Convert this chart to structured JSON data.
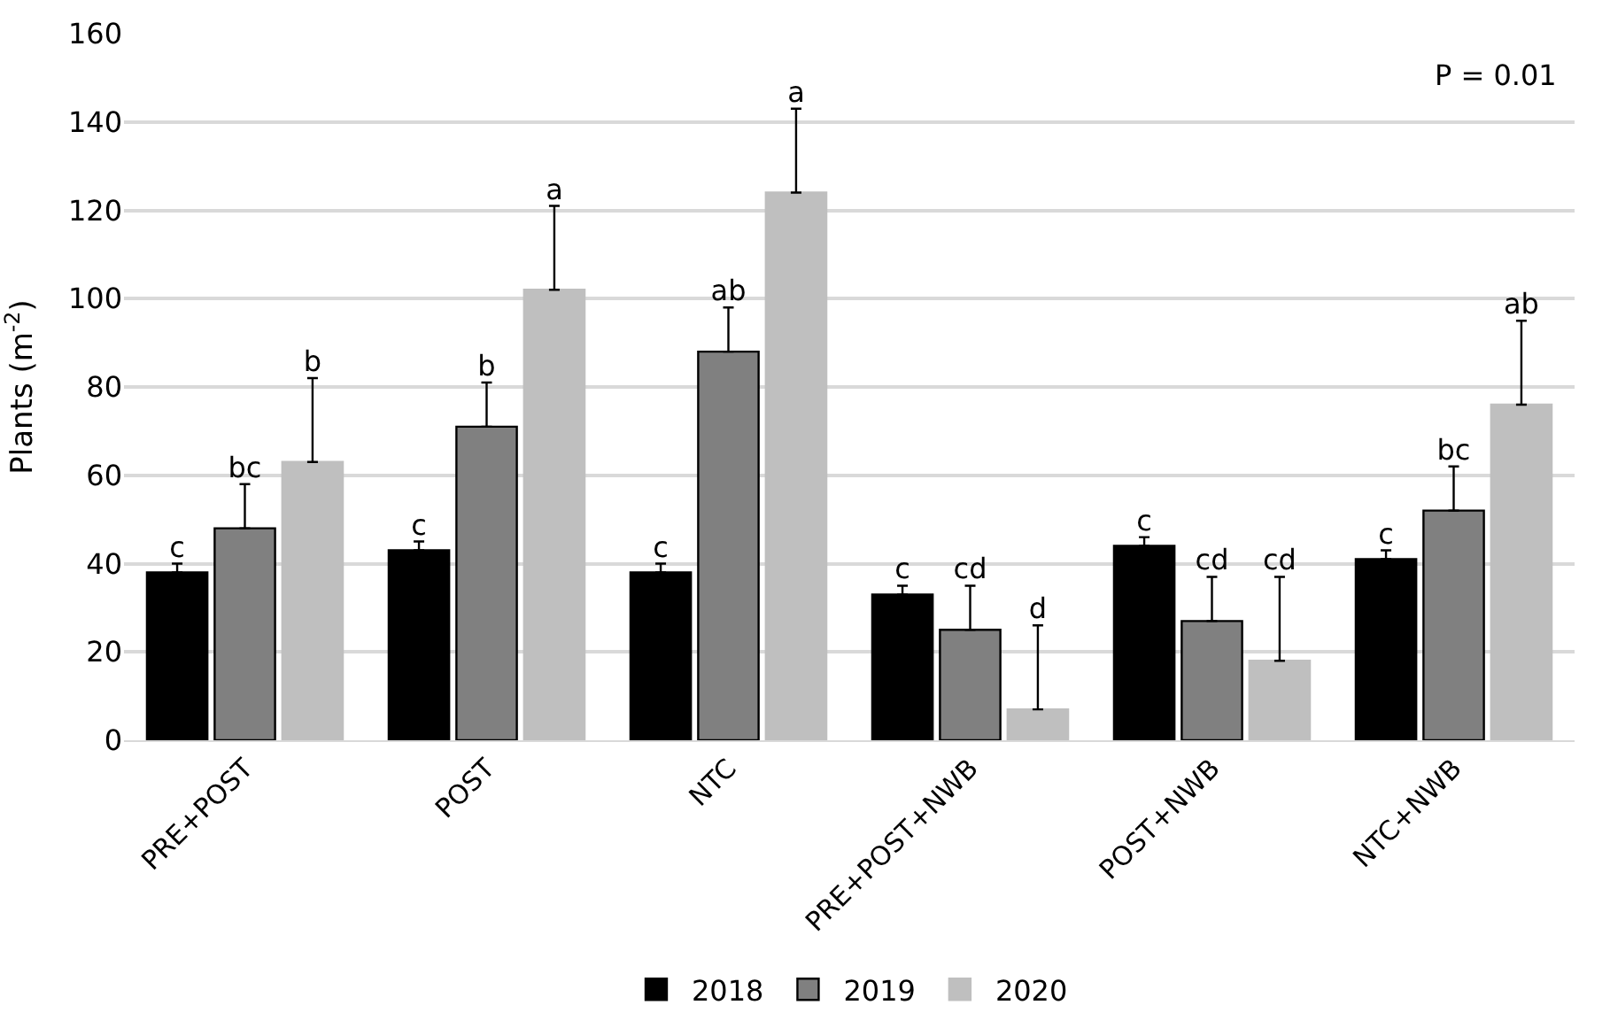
{
  "chart_data": {
    "type": "bar",
    "ylabel": "Plants (m$^{-2}$)",
    "categories": [
      "PRE+POST",
      "POST",
      "NTC",
      "PRE+POST+NWB",
      "POST+NWB",
      "NTC+NWB"
    ],
    "series": [
      {
        "name": "2018",
        "color": "#000000",
        "values": [
          38,
          43,
          38,
          33,
          44,
          41
        ],
        "errors": [
          [
            38,
            40
          ],
          [
            43,
            45
          ],
          [
            38,
            40
          ],
          [
            33,
            35
          ],
          [
            44,
            46
          ],
          [
            41,
            43
          ]
        ],
        "value_labels": [
          "c",
          "c",
          "c",
          "c",
          "c",
          "c"
        ]
      },
      {
        "name": "2019",
        "color": "#808080",
        "values": [
          48,
          71,
          88,
          25,
          27,
          52
        ],
        "errors": [
          [
            48,
            58
          ],
          [
            71,
            81
          ],
          [
            88,
            98
          ],
          [
            25,
            35
          ],
          [
            27,
            37
          ],
          [
            52,
            62
          ]
        ],
        "value_labels": [
          "bc",
          "b",
          "ab",
          "cd",
          "cd",
          "bc"
        ]
      },
      {
        "name": "2020",
        "color": "#bfbfbf",
        "values": [
          63,
          102,
          124,
          7,
          18,
          76
        ],
        "errors": [
          [
            63,
            82
          ],
          [
            102,
            121
          ],
          [
            124,
            143
          ],
          [
            7,
            26
          ],
          [
            18,
            37
          ],
          [
            76,
            95
          ]
        ],
        "value_labels": [
          "b",
          "a",
          "a",
          "d",
          "cd",
          "ab"
        ]
      }
    ],
    "ylim": [
      0,
      160
    ],
    "yticks": [
      0,
      20,
      40,
      60,
      80,
      100,
      120,
      140,
      160
    ],
    "grid": "y",
    "legend": "bottom",
    "annotations": [
      "P = 0.01"
    ]
  }
}
